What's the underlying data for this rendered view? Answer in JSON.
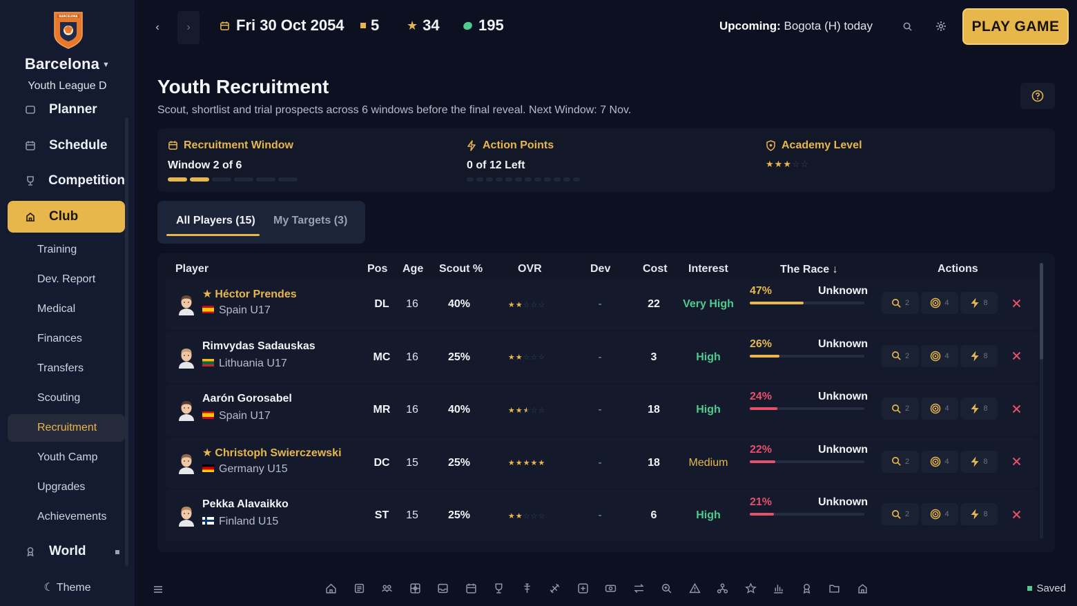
{
  "club": {
    "name": "Barcelona",
    "league": "Youth League D",
    "crest_text": "BARCELONA"
  },
  "sidebar": {
    "partial_item": "Planner",
    "items": [
      {
        "label": "Schedule",
        "icon": "calendar-icon"
      },
      {
        "label": "Competition",
        "icon": "trophy-icon"
      },
      {
        "label": "Club",
        "icon": "building-icon",
        "active": true
      }
    ],
    "sub_items": [
      {
        "label": "Training"
      },
      {
        "label": "Dev. Report"
      },
      {
        "label": "Medical"
      },
      {
        "label": "Finances"
      },
      {
        "label": "Transfers"
      },
      {
        "label": "Scouting"
      },
      {
        "label": "Recruitment",
        "active": true
      },
      {
        "label": "Youth Camp"
      },
      {
        "label": "Upgrades"
      },
      {
        "label": "Achievements"
      }
    ],
    "world": {
      "label": "World",
      "icon": "award-icon"
    },
    "theme_label": "Theme"
  },
  "topbar": {
    "date": "Fri 30 Oct 2054",
    "stat_square": "5",
    "stat_star": "34",
    "stat_coins": "195",
    "upcoming_label": "Upcoming:",
    "upcoming_value": "Bogota (H) today",
    "play_label": "PLAY GAME"
  },
  "page": {
    "title": "Youth Recruitment",
    "subtitle": "Scout, shortlist and trial prospects across 6 windows before the final reveal. Next Window: 7 Nov."
  },
  "info": {
    "window_label": "Recruitment Window",
    "window_value": "Window 2 of 6",
    "window_current": 2,
    "window_total": 6,
    "ap_label": "Action Points",
    "ap_value": "0 of 12 Left",
    "ap_remaining": 0,
    "ap_total": 12,
    "academy_label": "Academy Level",
    "academy_stars": 3,
    "academy_max": 5
  },
  "tabs": [
    {
      "label": "All Players (15)",
      "active": true
    },
    {
      "label": "My Targets (3)",
      "active": false
    }
  ],
  "table": {
    "headers": {
      "player": "Player",
      "pos": "Pos",
      "age": "Age",
      "scout": "Scout %",
      "ovr": "OVR",
      "dev": "Dev",
      "cost": "Cost",
      "interest": "Interest",
      "race": "The Race ↓",
      "actions": "Actions"
    },
    "rows": [
      {
        "name": "Héctor Prendes",
        "target": true,
        "team": "Spain U17",
        "flag": "spain",
        "pos": "DL",
        "age": "16",
        "scout": "40%",
        "ovr_stars": 2,
        "dev": "-",
        "cost": "22",
        "interest": "Very High",
        "interest_color": "#4ecb8d",
        "race_pct": "47%",
        "race_value": 0.47,
        "race_color": "#e8b74c",
        "race_status": "Unknown",
        "scout_cost": "2",
        "target_cost": "4",
        "trial_cost": "8"
      },
      {
        "name": "Rimvydas Sadauskas",
        "target": false,
        "team": "Lithuania U17",
        "flag": "lithuania",
        "pos": "MC",
        "age": "16",
        "scout": "25%",
        "ovr_stars": 2,
        "dev": "-",
        "cost": "3",
        "interest": "High",
        "interest_color": "#4ecb8d",
        "race_pct": "26%",
        "race_value": 0.26,
        "race_color": "#e8b74c",
        "race_status": "Unknown",
        "scout_cost": "2",
        "target_cost": "4",
        "trial_cost": "8"
      },
      {
        "name": "Aarón Gorosabel",
        "target": false,
        "team": "Spain U17",
        "flag": "spain",
        "pos": "MR",
        "age": "16",
        "scout": "40%",
        "ovr_stars": 2.5,
        "dev": "-",
        "cost": "18",
        "interest": "High",
        "interest_color": "#4ecb8d",
        "race_pct": "24%",
        "race_value": 0.24,
        "race_color": "#e5506a",
        "race_status": "Unknown",
        "scout_cost": "2",
        "target_cost": "4",
        "trial_cost": "8"
      },
      {
        "name": "Christoph Swierczewski",
        "target": true,
        "team": "Germany U15",
        "flag": "germany",
        "pos": "DC",
        "age": "15",
        "scout": "25%",
        "ovr_stars": 5,
        "dev": "-",
        "cost": "18",
        "interest": "Medium",
        "interest_color": "#e8b74c",
        "race_pct": "22%",
        "race_value": 0.22,
        "race_color": "#e5506a",
        "race_status": "Unknown",
        "scout_cost": "2",
        "target_cost": "4",
        "trial_cost": "8"
      },
      {
        "name": "Pekka Alavaikko",
        "target": false,
        "team": "Finland U15",
        "flag": "finland",
        "pos": "ST",
        "age": "15",
        "scout": "25%",
        "ovr_stars": 2,
        "dev": "-",
        "cost": "6",
        "interest": "High",
        "interest_color": "#4ecb8d",
        "race_pct": "21%",
        "race_value": 0.21,
        "race_color": "#e5506a",
        "race_status": "Unknown",
        "scout_cost": "2",
        "target_cost": "4",
        "trial_cost": "8"
      }
    ]
  },
  "dock": [
    "home-icon",
    "news-icon",
    "squad-icon",
    "tactics-icon",
    "inbox-icon",
    "calendar-icon",
    "trophy-icon",
    "training-icon",
    "medical-icon",
    "plus-icon",
    "finance-icon",
    "transfer-icon",
    "scout-icon",
    "alert-icon",
    "network-icon",
    "star-icon",
    "stats-icon",
    "award-icon",
    "folder-icon",
    "building-icon"
  ],
  "status": {
    "saved_label": "Saved"
  },
  "colors": {
    "accent": "#e8b74c",
    "green": "#4ecb8d",
    "red": "#e5506a",
    "bg": "#0c1020",
    "sidebar": "#141a2f"
  }
}
